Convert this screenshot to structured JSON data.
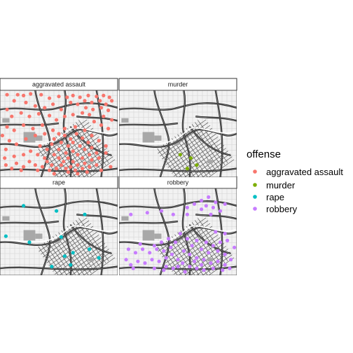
{
  "legend": {
    "title": "offense",
    "items": [
      {
        "label": "aggravated assault",
        "color": "#F8766D"
      },
      {
        "label": "murder",
        "color": "#7CAE00"
      },
      {
        "label": "rape",
        "color": "#00BFC4"
      },
      {
        "label": "robbery",
        "color": "#C77CFF"
      }
    ]
  },
  "chart_data": {
    "type": "scatter",
    "facet_labels": [
      "aggravated assault",
      "murder",
      "rape",
      "robbery"
    ],
    "xlim": [
      0,
      1
    ],
    "ylim": [
      0,
      1
    ],
    "series": [
      {
        "name": "aggravated assault",
        "color": "#F8766D",
        "points": [
          [
            0.06,
            0.05
          ],
          [
            0.15,
            0.05
          ],
          [
            0.2,
            0.06
          ],
          [
            0.26,
            0.04
          ],
          [
            0.35,
            0.05
          ],
          [
            0.42,
            0.09
          ],
          [
            0.5,
            0.07
          ],
          [
            0.57,
            0.08
          ],
          [
            0.62,
            0.06
          ],
          [
            0.68,
            0.08
          ],
          [
            0.75,
            0.06
          ],
          [
            0.82,
            0.07
          ],
          [
            0.88,
            0.06
          ],
          [
            0.93,
            0.08
          ],
          [
            0.72,
            0.12
          ],
          [
            0.78,
            0.14
          ],
          [
            0.85,
            0.12
          ],
          [
            0.9,
            0.16
          ],
          [
            0.66,
            0.16
          ],
          [
            0.73,
            0.2
          ],
          [
            0.79,
            0.22
          ],
          [
            0.86,
            0.2
          ],
          [
            0.92,
            0.23
          ],
          [
            0.7,
            0.26
          ],
          [
            0.76,
            0.28
          ],
          [
            0.95,
            0.12
          ],
          [
            0.6,
            0.14
          ],
          [
            0.45,
            0.16
          ],
          [
            0.38,
            0.2
          ],
          [
            0.52,
            0.22
          ],
          [
            0.3,
            0.18
          ],
          [
            0.22,
            0.14
          ],
          [
            0.12,
            0.12
          ],
          [
            0.06,
            0.22
          ],
          [
            0.1,
            0.3
          ],
          [
            0.18,
            0.26
          ],
          [
            0.25,
            0.3
          ],
          [
            0.33,
            0.27
          ],
          [
            0.42,
            0.29
          ],
          [
            0.48,
            0.34
          ],
          [
            0.55,
            0.3
          ],
          [
            0.62,
            0.28
          ],
          [
            0.06,
            0.42
          ],
          [
            0.12,
            0.46
          ],
          [
            0.2,
            0.4
          ],
          [
            0.28,
            0.44
          ],
          [
            0.36,
            0.4
          ],
          [
            0.02,
            0.52
          ],
          [
            0.08,
            0.58
          ],
          [
            0.05,
            0.68
          ],
          [
            0.14,
            0.62
          ],
          [
            0.22,
            0.56
          ],
          [
            0.3,
            0.52
          ],
          [
            0.38,
            0.5
          ],
          [
            0.45,
            0.46
          ],
          [
            0.55,
            0.44
          ],
          [
            0.64,
            0.42
          ],
          [
            0.72,
            0.46
          ],
          [
            0.78,
            0.52
          ],
          [
            0.84,
            0.58
          ],
          [
            0.9,
            0.64
          ],
          [
            0.55,
            0.52
          ],
          [
            0.6,
            0.56
          ],
          [
            0.65,
            0.5
          ],
          [
            0.7,
            0.55
          ],
          [
            0.75,
            0.6
          ],
          [
            0.62,
            0.6
          ],
          [
            0.68,
            0.64
          ],
          [
            0.72,
            0.68
          ],
          [
            0.78,
            0.66
          ],
          [
            0.52,
            0.6
          ],
          [
            0.58,
            0.64
          ],
          [
            0.5,
            0.68
          ],
          [
            0.56,
            0.72
          ],
          [
            0.62,
            0.7
          ],
          [
            0.66,
            0.74
          ],
          [
            0.7,
            0.78
          ],
          [
            0.76,
            0.74
          ],
          [
            0.82,
            0.72
          ],
          [
            0.46,
            0.74
          ],
          [
            0.5,
            0.78
          ],
          [
            0.54,
            0.82
          ],
          [
            0.58,
            0.78
          ],
          [
            0.62,
            0.82
          ],
          [
            0.66,
            0.86
          ],
          [
            0.72,
            0.84
          ],
          [
            0.78,
            0.8
          ],
          [
            0.84,
            0.78
          ],
          [
            0.9,
            0.72
          ],
          [
            0.4,
            0.82
          ],
          [
            0.44,
            0.86
          ],
          [
            0.48,
            0.9
          ],
          [
            0.52,
            0.86
          ],
          [
            0.56,
            0.9
          ],
          [
            0.6,
            0.88
          ],
          [
            0.64,
            0.92
          ],
          [
            0.7,
            0.9
          ],
          [
            0.76,
            0.88
          ],
          [
            0.82,
            0.86
          ],
          [
            0.36,
            0.88
          ],
          [
            0.42,
            0.92
          ],
          [
            0.3,
            0.86
          ],
          [
            0.32,
            0.92
          ],
          [
            0.25,
            0.82
          ],
          [
            0.2,
            0.88
          ],
          [
            0.14,
            0.84
          ],
          [
            0.18,
            0.92
          ],
          [
            0.1,
            0.9
          ],
          [
            0.05,
            0.86
          ],
          [
            0.38,
            0.78
          ],
          [
            0.32,
            0.74
          ],
          [
            0.26,
            0.7
          ],
          [
            0.2,
            0.74
          ],
          [
            0.12,
            0.76
          ],
          [
            0.04,
            0.78
          ],
          [
            0.4,
            0.68
          ],
          [
            0.34,
            0.64
          ],
          [
            0.44,
            0.62
          ],
          [
            0.46,
            0.56
          ],
          [
            0.5,
            0.5
          ],
          [
            0.86,
            0.4
          ],
          [
            0.92,
            0.44
          ],
          [
            0.8,
            0.36
          ],
          [
            0.88,
            0.3
          ],
          [
            0.95,
            0.34
          ],
          [
            0.58,
            0.94
          ],
          [
            0.66,
            0.96
          ],
          [
            0.46,
            0.96
          ],
          [
            0.74,
            0.94
          ],
          [
            0.86,
            0.92
          ],
          [
            0.94,
            0.88
          ]
        ]
      },
      {
        "name": "murder",
        "color": "#7CAE00",
        "points": [
          [
            0.52,
            0.74
          ],
          [
            0.61,
            0.78
          ],
          [
            0.58,
            0.9
          ],
          [
            0.66,
            0.86
          ]
        ]
      },
      {
        "name": "rape",
        "color": "#00BFC4",
        "points": [
          [
            0.2,
            0.2
          ],
          [
            0.48,
            0.26
          ],
          [
            0.72,
            0.3
          ],
          [
            0.25,
            0.62
          ],
          [
            0.52,
            0.56
          ],
          [
            0.62,
            0.74
          ],
          [
            0.76,
            0.7
          ],
          [
            0.44,
            0.9
          ],
          [
            0.55,
            0.78
          ],
          [
            0.6,
            0.88
          ],
          [
            0.84,
            0.8
          ],
          [
            0.05,
            0.55
          ]
        ]
      },
      {
        "name": "robbery",
        "color": "#C77CFF",
        "points": [
          [
            0.1,
            0.3
          ],
          [
            0.24,
            0.28
          ],
          [
            0.36,
            0.26
          ],
          [
            0.46,
            0.3
          ],
          [
            0.58,
            0.22
          ],
          [
            0.64,
            0.18
          ],
          [
            0.7,
            0.24
          ],
          [
            0.74,
            0.2
          ],
          [
            0.8,
            0.22
          ],
          [
            0.86,
            0.26
          ],
          [
            0.78,
            0.3
          ],
          [
            0.7,
            0.14
          ],
          [
            0.76,
            0.1
          ],
          [
            0.82,
            0.16
          ],
          [
            0.9,
            0.18
          ],
          [
            0.58,
            0.3
          ],
          [
            0.52,
            0.52
          ],
          [
            0.58,
            0.58
          ],
          [
            0.66,
            0.6
          ],
          [
            0.74,
            0.62
          ],
          [
            0.8,
            0.66
          ],
          [
            0.62,
            0.66
          ],
          [
            0.7,
            0.7
          ],
          [
            0.76,
            0.74
          ],
          [
            0.84,
            0.72
          ],
          [
            0.9,
            0.76
          ],
          [
            0.55,
            0.72
          ],
          [
            0.6,
            0.76
          ],
          [
            0.66,
            0.8
          ],
          [
            0.72,
            0.82
          ],
          [
            0.78,
            0.86
          ],
          [
            0.84,
            0.84
          ],
          [
            0.9,
            0.88
          ],
          [
            0.95,
            0.82
          ],
          [
            0.5,
            0.82
          ],
          [
            0.54,
            0.86
          ],
          [
            0.6,
            0.9
          ],
          [
            0.66,
            0.92
          ],
          [
            0.72,
            0.94
          ],
          [
            0.8,
            0.92
          ],
          [
            0.45,
            0.76
          ],
          [
            0.4,
            0.8
          ],
          [
            0.34,
            0.84
          ],
          [
            0.28,
            0.82
          ],
          [
            0.22,
            0.86
          ],
          [
            0.16,
            0.84
          ],
          [
            0.1,
            0.88
          ],
          [
            0.06,
            0.82
          ],
          [
            0.14,
            0.74
          ],
          [
            0.08,
            0.7
          ],
          [
            0.2,
            0.7
          ],
          [
            0.26,
            0.74
          ],
          [
            0.32,
            0.7
          ],
          [
            0.38,
            0.72
          ],
          [
            0.44,
            0.68
          ],
          [
            0.48,
            0.62
          ],
          [
            0.42,
            0.58
          ],
          [
            0.36,
            0.62
          ],
          [
            0.3,
            0.66
          ],
          [
            0.18,
            0.64
          ],
          [
            0.12,
            0.92
          ],
          [
            0.3,
            0.92
          ],
          [
            0.38,
            0.94
          ],
          [
            0.46,
            0.92
          ],
          [
            0.56,
            0.96
          ],
          [
            0.88,
            0.94
          ],
          [
            0.94,
            0.92
          ],
          [
            0.86,
            0.62
          ],
          [
            0.92,
            0.6
          ],
          [
            0.98,
            0.68
          ],
          [
            0.82,
            0.5
          ],
          [
            0.9,
            0.52
          ],
          [
            0.4,
            0.9
          ],
          [
            0.5,
            0.9
          ],
          [
            0.64,
            0.84
          ],
          [
            0.7,
            0.88
          ]
        ]
      }
    ]
  }
}
